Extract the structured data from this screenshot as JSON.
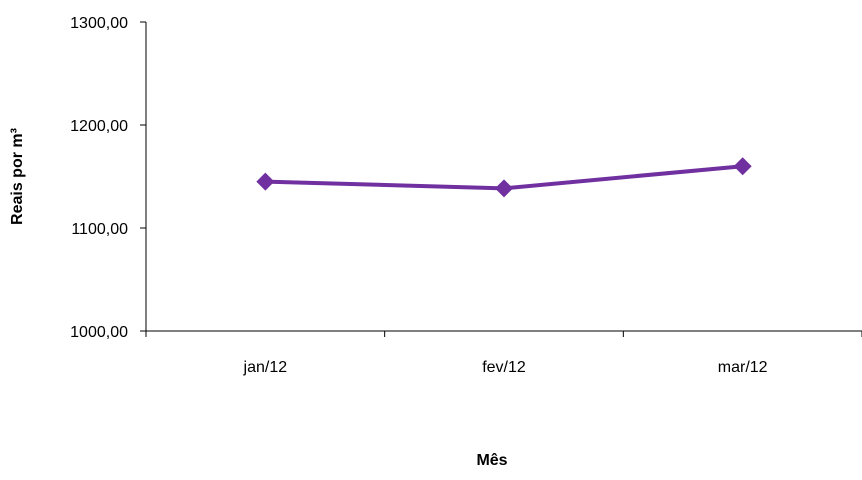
{
  "chart_data": {
    "type": "line",
    "title": "",
    "xlabel": "Mês",
    "ylabel": "Reais por  m³",
    "categories": [
      "jan/12",
      "fev/12",
      "mar/12"
    ],
    "series": [
      {
        "values": [
          1145.0,
          1138.5,
          1160.0
        ],
        "color": "#7030a0",
        "marker": "diamond"
      }
    ],
    "ylim": [
      1000,
      1300
    ],
    "yticks": [
      1000,
      1100,
      1200,
      1300
    ],
    "ytick_labels": [
      "1000,00",
      "1100,00",
      "1200,00",
      "1300,00"
    ],
    "grid": false,
    "legend": "none"
  }
}
